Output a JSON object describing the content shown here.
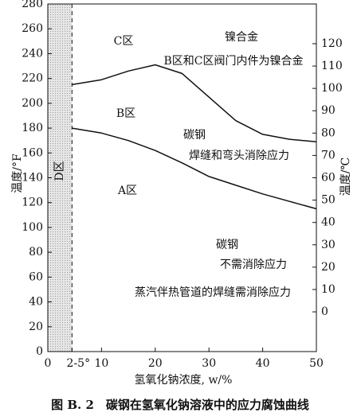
{
  "chart_data": {
    "type": "line",
    "x": [
      4.5,
      10,
      15,
      20,
      25,
      30,
      35,
      40,
      45,
      50
    ],
    "series": [
      {
        "color": "#111111",
        "values": [
          215,
          219,
          226,
          231,
          224,
          205,
          186,
          175,
          171,
          169
        ]
      },
      {
        "color": "#111111",
        "values": [
          180,
          176,
          170,
          162,
          152,
          141,
          134,
          127,
          121,
          115
        ]
      }
    ],
    "xlim": [
      0,
      50
    ],
    "xticks": [
      0,
      {
        "value": 4.5,
        "label": "2-5°"
      },
      10,
      20,
      30,
      40,
      50
    ],
    "ylim": [
      0,
      280
    ],
    "yticks": [
      0,
      20,
      40,
      60,
      80,
      100,
      120,
      140,
      160,
      180,
      200,
      220,
      240,
      260,
      280
    ],
    "y2lim": [
      -17.78,
      137.78
    ],
    "y2ticks": [
      0,
      10,
      20,
      30,
      40,
      50,
      60,
      70,
      80,
      90,
      100,
      110,
      120
    ],
    "xlabel": "氢氧化钠浓度, w/%",
    "ylabel": "温度/°F",
    "y2label": "温度/℃",
    "caption": "图 B. 2　碳钢在氢氧化钠溶液中的应力腐蚀曲线",
    "annotations": [
      "C区",
      "镍合金",
      "B区和C区阀门内件为镍合金",
      "B区",
      "碳钢",
      "焊缝和弯头消除应力",
      "A区",
      "碳钢",
      "不需消除应力",
      "蒸汽伴热管道的焊缝需消除应力",
      "D区"
    ]
  }
}
